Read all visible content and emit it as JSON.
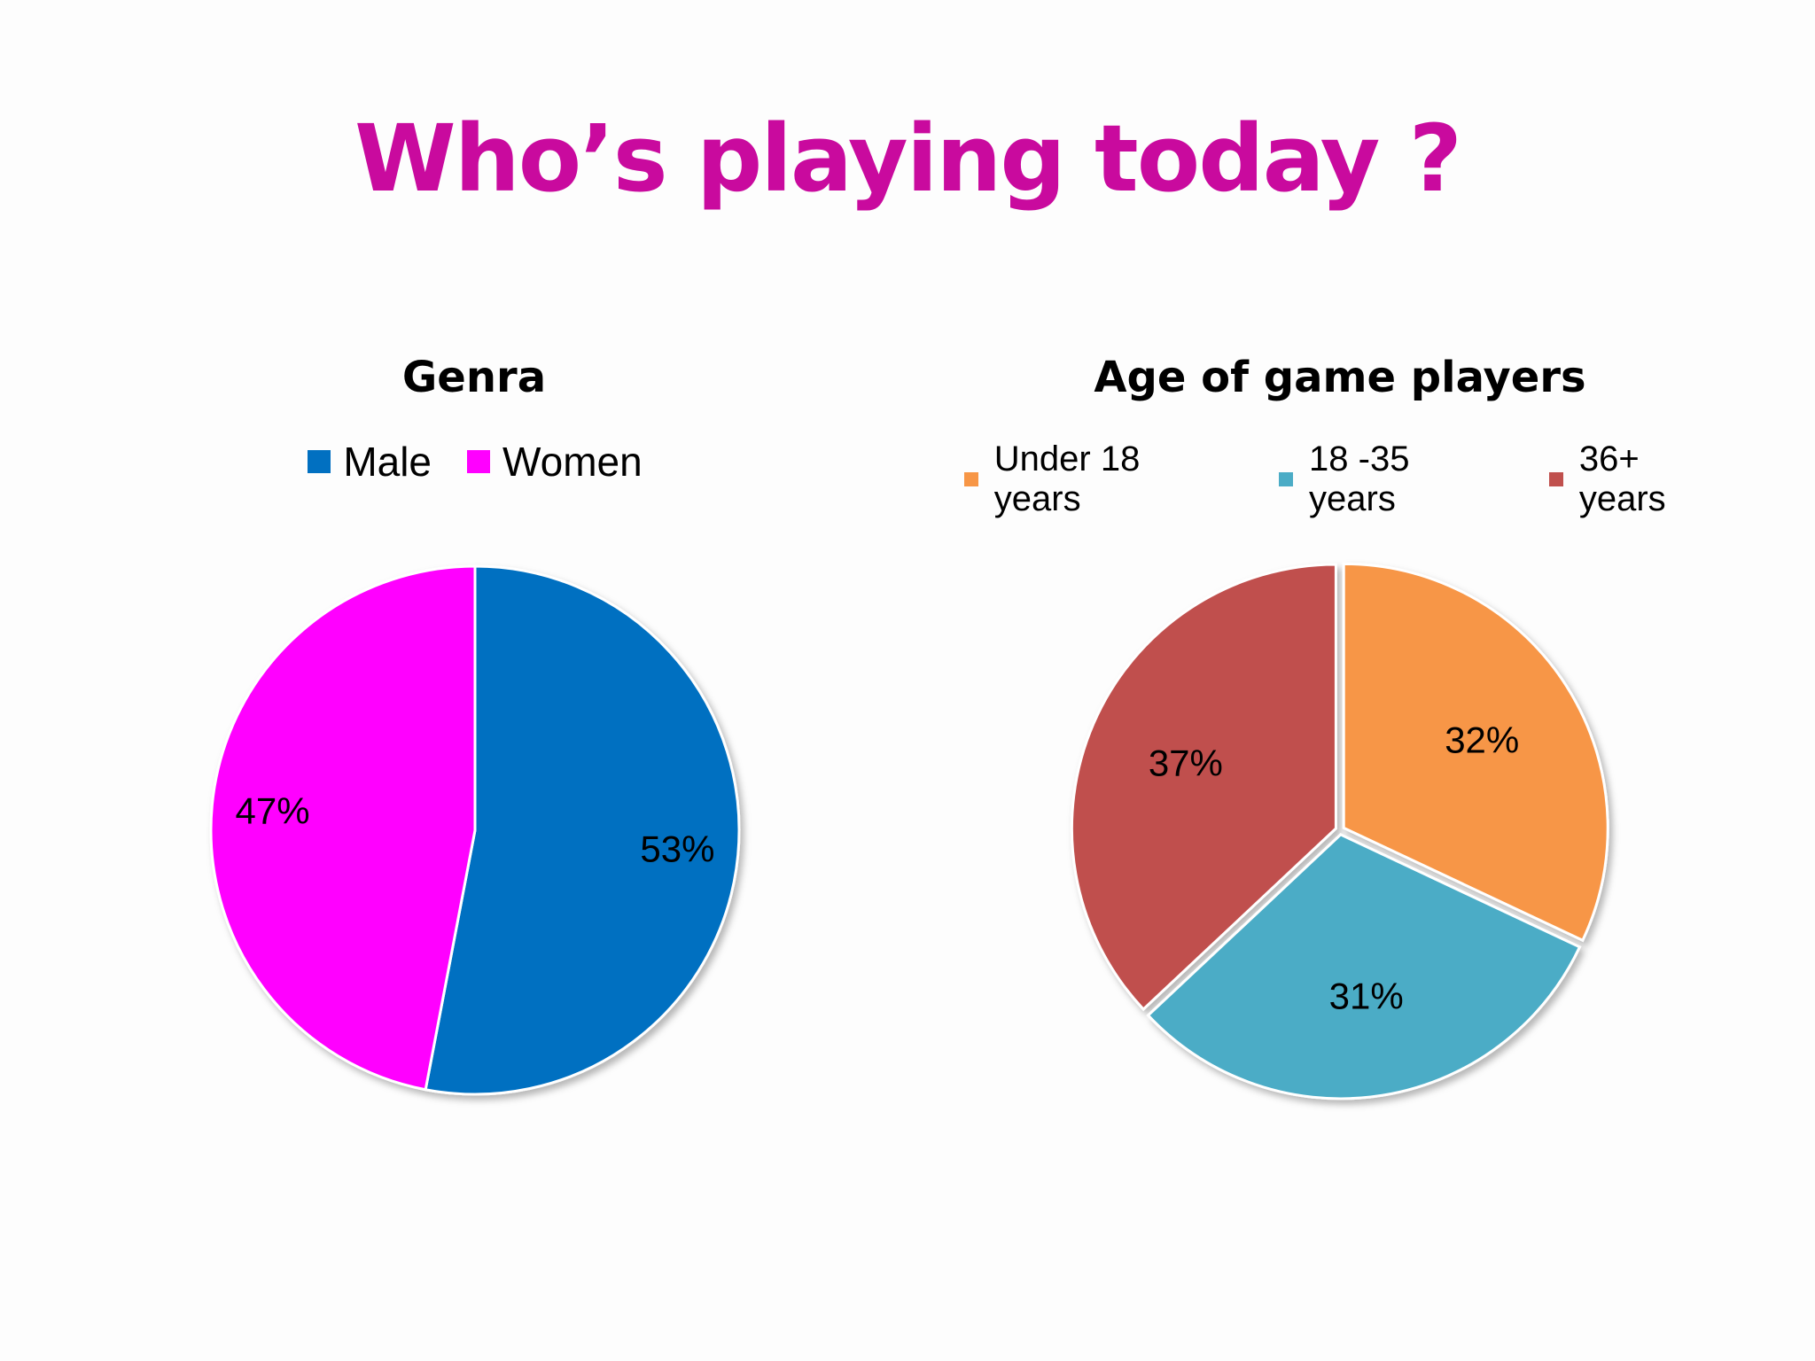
{
  "slide_title": "Who’s playing today ?",
  "chart_data": [
    {
      "type": "pie",
      "title": "Genra",
      "categories": [
        "Male",
        "Women"
      ],
      "values": [
        53,
        47
      ],
      "labels": [
        "53%",
        "47%"
      ],
      "colors": [
        "#0170c1",
        "#ff00ff"
      ],
      "legend_position": "top"
    },
    {
      "type": "pie",
      "title": "Age of game players",
      "categories": [
        "Under 18 years",
        "18 -35 years",
        "36+ years"
      ],
      "values": [
        32,
        31,
        37
      ],
      "labels": [
        "32%",
        "31%",
        "37%"
      ],
      "colors": [
        "#f79646",
        "#4bacc6",
        "#c0504d"
      ],
      "legend_position": "top"
    }
  ]
}
